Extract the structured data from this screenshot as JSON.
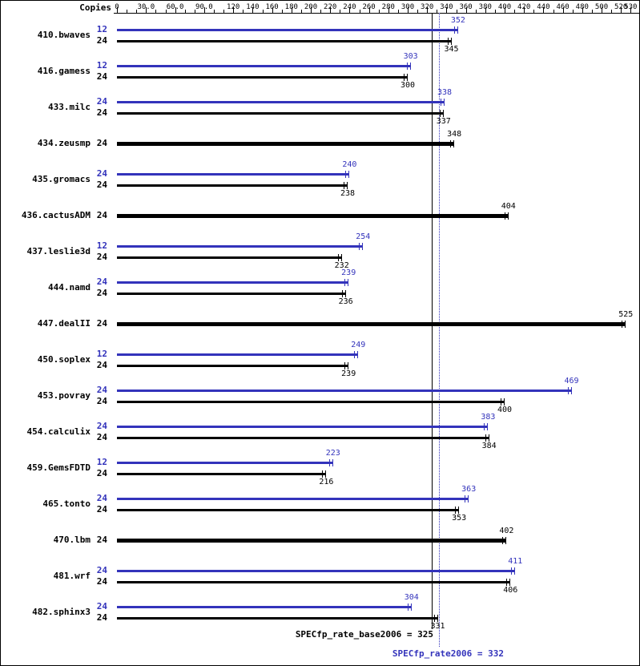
{
  "header": {
    "copies_label": "Copies"
  },
  "colors": {
    "peak": "#3333bb",
    "base": "#000000",
    "background": "#ffffff"
  },
  "chart_data": {
    "type": "bar",
    "orientation": "horizontal",
    "legend": "blue = peak result, black = base result, thick black = base and peak equal",
    "axis": {
      "min": 0,
      "max": 530,
      "minor_tick_step": 10,
      "tick_values": [
        0,
        30,
        60,
        90,
        120,
        140,
        160,
        180,
        200,
        220,
        240,
        260,
        280,
        300,
        320,
        340,
        360,
        380,
        400,
        420,
        440,
        460,
        480,
        500,
        520,
        530
      ],
      "tick_labels": [
        "0",
        "30.0",
        "60.0",
        "90.0",
        "120",
        "140",
        "160",
        "180",
        "200",
        "220",
        "240",
        "260",
        "280",
        "300",
        "320",
        "340",
        "360",
        "380",
        "400",
        "420",
        "440",
        "460",
        "480",
        "500",
        "520",
        "530"
      ]
    },
    "reference_lines": [
      {
        "name": "base",
        "value": 325,
        "style": "solid",
        "color": "#000000",
        "label": "SPECfp_rate_base2006 = 325"
      },
      {
        "name": "peak",
        "value": 332,
        "style": "dotted",
        "color": "#3333bb",
        "label": "SPECfp_rate2006 = 332"
      }
    ],
    "benchmarks": [
      {
        "name": "410.bwaves",
        "bars": [
          {
            "kind": "peak",
            "copies": "12",
            "value": 352
          },
          {
            "kind": "base",
            "copies": "24",
            "value": 345
          }
        ]
      },
      {
        "name": "416.gamess",
        "bars": [
          {
            "kind": "peak",
            "copies": "12",
            "value": 303
          },
          {
            "kind": "base",
            "copies": "24",
            "value": 300
          }
        ]
      },
      {
        "name": "433.milc",
        "bars": [
          {
            "kind": "peak",
            "copies": "24",
            "value": 338
          },
          {
            "kind": "base",
            "copies": "24",
            "value": 337
          }
        ]
      },
      {
        "name": "434.zeusmp",
        "bars": [
          {
            "kind": "both",
            "copies": "24",
            "value": 348
          }
        ]
      },
      {
        "name": "435.gromacs",
        "bars": [
          {
            "kind": "peak",
            "copies": "24",
            "value": 240
          },
          {
            "kind": "base",
            "copies": "24",
            "value": 238
          }
        ]
      },
      {
        "name": "436.cactusADM",
        "bars": [
          {
            "kind": "both",
            "copies": "24",
            "value": 404
          }
        ]
      },
      {
        "name": "437.leslie3d",
        "bars": [
          {
            "kind": "peak",
            "copies": "12",
            "value": 254
          },
          {
            "kind": "base",
            "copies": "24",
            "value": 232
          }
        ]
      },
      {
        "name": "444.namd",
        "bars": [
          {
            "kind": "peak",
            "copies": "24",
            "value": 239
          },
          {
            "kind": "base",
            "copies": "24",
            "value": 236
          }
        ]
      },
      {
        "name": "447.dealII",
        "bars": [
          {
            "kind": "both",
            "copies": "24",
            "value": 525
          }
        ]
      },
      {
        "name": "450.soplex",
        "bars": [
          {
            "kind": "peak",
            "copies": "12",
            "value": 249
          },
          {
            "kind": "base",
            "copies": "24",
            "value": 239
          }
        ]
      },
      {
        "name": "453.povray",
        "bars": [
          {
            "kind": "peak",
            "copies": "24",
            "value": 469
          },
          {
            "kind": "base",
            "copies": "24",
            "value": 400
          }
        ]
      },
      {
        "name": "454.calculix",
        "bars": [
          {
            "kind": "peak",
            "copies": "24",
            "value": 383
          },
          {
            "kind": "base",
            "copies": "24",
            "value": 384
          }
        ]
      },
      {
        "name": "459.GemsFDTD",
        "bars": [
          {
            "kind": "peak",
            "copies": "12",
            "value": 223
          },
          {
            "kind": "base",
            "copies": "24",
            "value": 216
          }
        ]
      },
      {
        "name": "465.tonto",
        "bars": [
          {
            "kind": "peak",
            "copies": "24",
            "value": 363
          },
          {
            "kind": "base",
            "copies": "24",
            "value": 353
          }
        ]
      },
      {
        "name": "470.lbm",
        "bars": [
          {
            "kind": "both",
            "copies": "24",
            "value": 402
          }
        ]
      },
      {
        "name": "481.wrf",
        "bars": [
          {
            "kind": "peak",
            "copies": "24",
            "value": 411
          },
          {
            "kind": "base",
            "copies": "24",
            "value": 406
          }
        ]
      },
      {
        "name": "482.sphinx3",
        "bars": [
          {
            "kind": "peak",
            "copies": "24",
            "value": 304
          },
          {
            "kind": "base",
            "copies": "24",
            "value": 331
          }
        ]
      }
    ]
  }
}
